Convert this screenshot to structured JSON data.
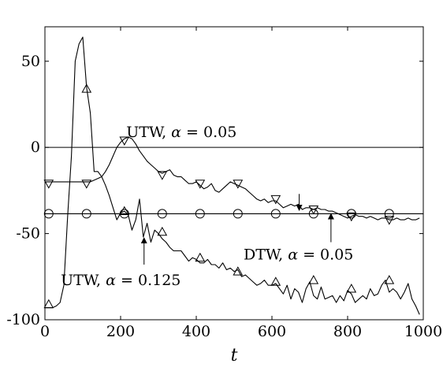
{
  "chart_data": {
    "type": "line",
    "title": "",
    "xlabel": "t",
    "ylabel": "",
    "xlim": [
      0,
      1000
    ],
    "ylim": [
      -100,
      70
    ],
    "xticks": [
      0,
      200,
      400,
      600,
      800,
      1000
    ],
    "yticks": [
      50,
      0,
      -50,
      -100
    ],
    "xtick_labels": [
      "0",
      "200",
      "400",
      "600",
      "800",
      "1000"
    ],
    "ytick_labels": [
      "50",
      "0",
      "-50",
      "-100"
    ],
    "grid": false,
    "reference_line": 0,
    "series": [
      {
        "key": "utw_0125",
        "marker": "triangle-up",
        "x": [
          0,
          10,
          20,
          30,
          40,
          50,
          60,
          70,
          80,
          90,
          100,
          110,
          120,
          130,
          140,
          150,
          160,
          170,
          180,
          190,
          200,
          210,
          220,
          230,
          240,
          250,
          260,
          270,
          280,
          290,
          300,
          310,
          320,
          330,
          340,
          350,
          360,
          370,
          380,
          390,
          400,
          410,
          420,
          430,
          440,
          450,
          460,
          470,
          480,
          490,
          500,
          510,
          520,
          530,
          540,
          550,
          560,
          570,
          580,
          590,
          600,
          610,
          620,
          630,
          640,
          650,
          660,
          670,
          680,
          690,
          700,
          710,
          720,
          730,
          740,
          750,
          760,
          770,
          780,
          790,
          800,
          810,
          820,
          830,
          840,
          850,
          860,
          870,
          880,
          890,
          900,
          910,
          920,
          930,
          940,
          950,
          960,
          970,
          980,
          990
        ],
        "y": [
          -93,
          -93,
          -93,
          -92,
          -90,
          -80,
          -40,
          -5,
          50,
          60,
          64,
          35,
          20,
          -14,
          -14,
          -17,
          -22,
          -28,
          -35,
          -42,
          -38,
          -37,
          -39,
          -48,
          -42,
          -30,
          -52,
          -44,
          -55,
          -48,
          -50,
          -53,
          -55,
          -58,
          -60,
          -60,
          -60,
          -63,
          -66,
          -64,
          -65,
          -67,
          -67,
          -65,
          -68,
          -68,
          -70,
          -67,
          -71,
          -70,
          -72,
          -71,
          -75,
          -74,
          -76,
          -78,
          -80,
          -79,
          -77,
          -80,
          -80,
          -79,
          -82,
          -85,
          -80,
          -88,
          -82,
          -84,
          -90,
          -82,
          -78,
          -86,
          -88,
          -81,
          -88,
          -87,
          -86,
          -90,
          -86,
          -89,
          -83,
          -85,
          -90,
          -88,
          -86,
          -88,
          -82,
          -86,
          -85,
          -80,
          -77,
          -84,
          -82,
          -84,
          -88,
          -84,
          -79,
          -88,
          -92,
          -97
        ],
        "marker_x": [
          10,
          110,
          210,
          310,
          410,
          510,
          610,
          710,
          810,
          910
        ],
        "marker_y": [
          -91,
          34,
          -37,
          -49,
          -64,
          -72,
          -78,
          -77,
          -82,
          -77
        ]
      },
      {
        "key": "utw_005",
        "marker": "triangle-down",
        "x": [
          0,
          20,
          40,
          60,
          80,
          100,
          110,
          120,
          130,
          140,
          150,
          160,
          170,
          180,
          190,
          200,
          210,
          220,
          230,
          240,
          250,
          260,
          270,
          280,
          290,
          300,
          310,
          320,
          330,
          340,
          350,
          360,
          370,
          380,
          390,
          400,
          410,
          420,
          430,
          440,
          450,
          460,
          470,
          480,
          490,
          500,
          510,
          520,
          530,
          540,
          550,
          560,
          570,
          580,
          590,
          600,
          610,
          620,
          630,
          640,
          650,
          660,
          670,
          680,
          690,
          700,
          710,
          720,
          730,
          740,
          750,
          760,
          770,
          780,
          790,
          800,
          810,
          820,
          830,
          840,
          850,
          860,
          870,
          880,
          890,
          900,
          910,
          920,
          930,
          940,
          950,
          960,
          970,
          980,
          990
        ],
        "y": [
          -20,
          -20,
          -20,
          -20,
          -20,
          -20,
          -20,
          -20,
          -19,
          -18,
          -17,
          -14,
          -10,
          -5,
          0,
          3,
          5,
          6,
          5,
          2,
          -2,
          -5,
          -8,
          -10,
          -12,
          -14,
          -15,
          -14,
          -13,
          -16,
          -17,
          -17,
          -19,
          -21,
          -21,
          -20,
          -22,
          -24,
          -23,
          -21,
          -25,
          -26,
          -24,
          -22,
          -20,
          -21,
          -22,
          -23,
          -24,
          -26,
          -28,
          -30,
          -31,
          -30,
          -32,
          -31,
          -31,
          -33,
          -35,
          -34,
          -33,
          -34,
          -33,
          -36,
          -35,
          -35,
          -36,
          -35,
          -36,
          -36,
          -37,
          -37,
          -38,
          -39,
          -40,
          -41,
          -40,
          -39,
          -40,
          -40,
          -41,
          -40,
          -41,
          -42,
          -41,
          -41,
          -42,
          -42,
          -41,
          -42,
          -42,
          -41,
          -42,
          -42,
          -41
        ],
        "marker_x": [
          10,
          110,
          210,
          310,
          410,
          510,
          610,
          710,
          810,
          910
        ],
        "marker_y": [
          -21,
          -21,
          4,
          -16,
          -21,
          -21,
          -30,
          -36,
          -40,
          -42
        ]
      },
      {
        "key": "dtw_005",
        "marker": "circle",
        "x": [
          0,
          100,
          200,
          300,
          400,
          500,
          600,
          700,
          800,
          900,
          1000
        ],
        "y": [
          -38.5,
          -38.5,
          -38.5,
          -38.5,
          -38.5,
          -38.5,
          -38.5,
          -38.5,
          -38.5,
          -38.5,
          -38.5
        ],
        "marker_x": [
          10,
          110,
          210,
          310,
          410,
          510,
          610,
          710,
          810,
          910
        ],
        "marker_y": [
          -38.5,
          -38.5,
          -38.5,
          -38.5,
          -38.5,
          -38.5,
          -38.5,
          -38.5,
          -38.5,
          -38.5
        ]
      }
    ],
    "annotations": [
      {
        "key": "utw_005",
        "prefix": "UTW, ",
        "alpha_symbol": "α",
        "value": " = 0.05",
        "text_x": 215,
        "text_y": 6,
        "arrow_from": [
          672,
          -27
        ],
        "arrow_to": [
          672,
          -36
        ]
      },
      {
        "key": "dtw_005",
        "prefix": "DTW, ",
        "alpha_symbol": "α",
        "value": " = 0.05",
        "text_x": 525,
        "text_y": -65,
        "arrow_from": [
          756,
          -55
        ],
        "arrow_to": [
          756,
          -39
        ]
      },
      {
        "key": "utw_0125",
        "prefix": "UTW, ",
        "alpha_symbol": "α",
        "value": " = 0.125",
        "text_x": 42,
        "text_y": -80,
        "arrow_from": [
          262,
          -68
        ],
        "arrow_to": [
          262,
          -53
        ]
      }
    ]
  }
}
